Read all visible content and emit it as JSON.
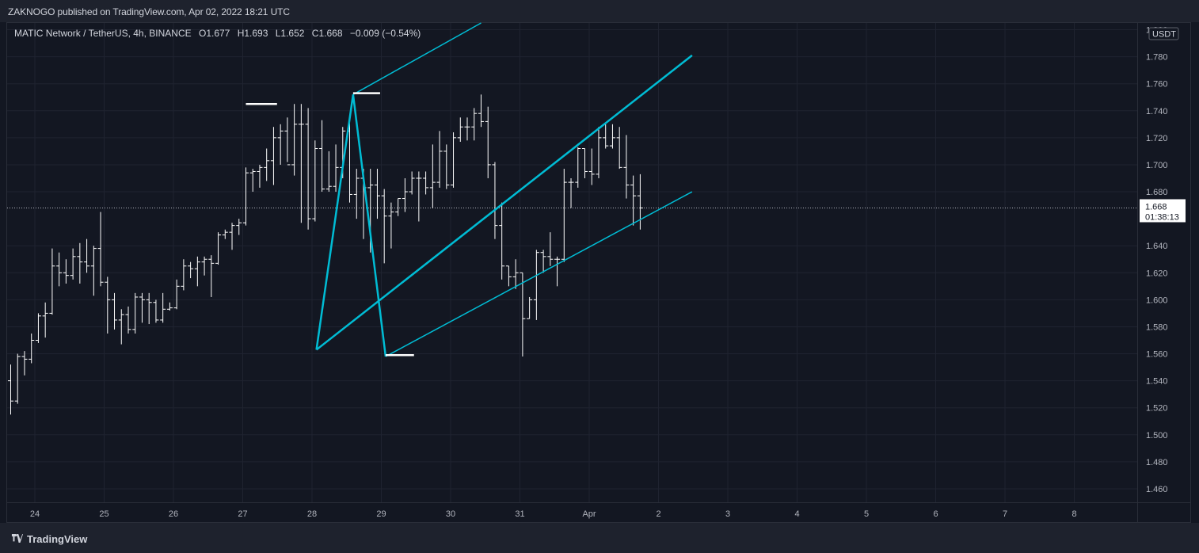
{
  "header": {
    "publish_line": "ZAKNOGO published on TradingView.com, Apr 02, 2022 18:21 UTC"
  },
  "legend": {
    "symbol": "MATIC Network / TetherUS, 4h, BINANCE",
    "open_label": "O",
    "open": "1.677",
    "high_label": "H",
    "high": "1.693",
    "low_label": "L",
    "low": "1.652",
    "close_label": "C",
    "close": "1.668",
    "change": "−0.009 (−0.54%)"
  },
  "price_axis": {
    "currency": "USDT",
    "ticks": [
      "1.800",
      "1.780",
      "1.760",
      "1.740",
      "1.720",
      "1.700",
      "1.680",
      "1.640",
      "1.620",
      "1.600",
      "1.580",
      "1.560",
      "1.540",
      "1.520",
      "1.500",
      "1.480",
      "1.460"
    ],
    "last_price": "1.668",
    "countdown": "01:38:13"
  },
  "time_axis": {
    "ticks": [
      "24",
      "25",
      "26",
      "27",
      "28",
      "29",
      "30",
      "31",
      "Apr",
      "2",
      "3",
      "4",
      "5",
      "6",
      "7",
      "8"
    ]
  },
  "footer": {
    "brand": "TradingView"
  },
  "colors": {
    "background": "#131722",
    "bars": "#ffffff",
    "pitchfork": "#00bcd4",
    "grid": "#1f2330",
    "axis_text": "#b2b5be"
  },
  "chart_data": {
    "type": "ohlc",
    "timeframe": "4h",
    "ylim": [
      1.45,
      1.805
    ],
    "x_ticks": [
      "24",
      "25",
      "26",
      "27",
      "28",
      "29",
      "30",
      "31",
      "Apr",
      "2",
      "3",
      "4",
      "5",
      "6",
      "7",
      "8"
    ],
    "bars": [
      {
        "o": 1.54,
        "h": 1.552,
        "l": 1.515,
        "c": 1.525
      },
      {
        "o": 1.525,
        "h": 1.56,
        "l": 1.523,
        "c": 1.558
      },
      {
        "o": 1.558,
        "h": 1.562,
        "l": 1.544,
        "c": 1.556
      },
      {
        "o": 1.556,
        "h": 1.575,
        "l": 1.553,
        "c": 1.57
      },
      {
        "o": 1.57,
        "h": 1.59,
        "l": 1.568,
        "c": 1.588
      },
      {
        "o": 1.588,
        "h": 1.598,
        "l": 1.572,
        "c": 1.59
      },
      {
        "o": 1.59,
        "h": 1.638,
        "l": 1.589,
        "c": 1.625
      },
      {
        "o": 1.625,
        "h": 1.635,
        "l": 1.61,
        "c": 1.62
      },
      {
        "o": 1.62,
        "h": 1.63,
        "l": 1.612,
        "c": 1.618
      },
      {
        "o": 1.618,
        "h": 1.638,
        "l": 1.615,
        "c": 1.632
      },
      {
        "o": 1.632,
        "h": 1.642,
        "l": 1.612,
        "c": 1.628
      },
      {
        "o": 1.628,
        "h": 1.645,
        "l": 1.62,
        "c": 1.625
      },
      {
        "o": 1.625,
        "h": 1.64,
        "l": 1.603,
        "c": 1.638
      },
      {
        "o": 1.638,
        "h": 1.665,
        "l": 1.61,
        "c": 1.613
      },
      {
        "o": 1.613,
        "h": 1.617,
        "l": 1.575,
        "c": 1.6
      },
      {
        "o": 1.6,
        "h": 1.605,
        "l": 1.578,
        "c": 1.585
      },
      {
        "o": 1.585,
        "h": 1.593,
        "l": 1.567,
        "c": 1.589
      },
      {
        "o": 1.589,
        "h": 1.595,
        "l": 1.575,
        "c": 1.578
      },
      {
        "o": 1.578,
        "h": 1.605,
        "l": 1.575,
        "c": 1.602
      },
      {
        "o": 1.602,
        "h": 1.605,
        "l": 1.583,
        "c": 1.6
      },
      {
        "o": 1.6,
        "h": 1.605,
        "l": 1.582,
        "c": 1.598
      },
      {
        "o": 1.598,
        "h": 1.6,
        "l": 1.583,
        "c": 1.585
      },
      {
        "o": 1.585,
        "h": 1.605,
        "l": 1.583,
        "c": 1.593
      },
      {
        "o": 1.593,
        "h": 1.598,
        "l": 1.592,
        "c": 1.594
      },
      {
        "o": 1.594,
        "h": 1.615,
        "l": 1.593,
        "c": 1.61
      },
      {
        "o": 1.61,
        "h": 1.63,
        "l": 1.607,
        "c": 1.625
      },
      {
        "o": 1.625,
        "h": 1.628,
        "l": 1.616,
        "c": 1.623
      },
      {
        "o": 1.623,
        "h": 1.632,
        "l": 1.61,
        "c": 1.628
      },
      {
        "o": 1.628,
        "h": 1.632,
        "l": 1.618,
        "c": 1.63
      },
      {
        "o": 1.63,
        "h": 1.633,
        "l": 1.602,
        "c": 1.627
      },
      {
        "o": 1.627,
        "h": 1.65,
        "l": 1.626,
        "c": 1.648
      },
      {
        "o": 1.648,
        "h": 1.652,
        "l": 1.645,
        "c": 1.65
      },
      {
        "o": 1.65,
        "h": 1.657,
        "l": 1.637,
        "c": 1.655
      },
      {
        "o": 1.655,
        "h": 1.66,
        "l": 1.648,
        "c": 1.657
      },
      {
        "o": 1.657,
        "h": 1.698,
        "l": 1.655,
        "c": 1.694
      },
      {
        "o": 1.694,
        "h": 1.697,
        "l": 1.68,
        "c": 1.695
      },
      {
        "o": 1.695,
        "h": 1.7,
        "l": 1.683,
        "c": 1.698
      },
      {
        "o": 1.698,
        "h": 1.712,
        "l": 1.688,
        "c": 1.703
      },
      {
        "o": 1.703,
        "h": 1.728,
        "l": 1.685,
        "c": 1.72
      },
      {
        "o": 1.72,
        "h": 1.73,
        "l": 1.7,
        "c": 1.725
      },
      {
        "o": 1.725,
        "h": 1.735,
        "l": 1.702,
        "c": 1.7
      },
      {
        "o": 1.7,
        "h": 1.745,
        "l": 1.692,
        "c": 1.73
      },
      {
        "o": 1.73,
        "h": 1.745,
        "l": 1.657,
        "c": 1.73
      },
      {
        "o": 1.73,
        "h": 1.742,
        "l": 1.652,
        "c": 1.66
      },
      {
        "o": 1.66,
        "h": 1.718,
        "l": 1.658,
        "c": 1.712
      },
      {
        "o": 1.712,
        "h": 1.733,
        "l": 1.68,
        "c": 1.682
      },
      {
        "o": 1.682,
        "h": 1.71,
        "l": 1.68,
        "c": 1.684
      },
      {
        "o": 1.684,
        "h": 1.715,
        "l": 1.68,
        "c": 1.698
      },
      {
        "o": 1.698,
        "h": 1.728,
        "l": 1.69,
        "c": 1.725
      },
      {
        "o": 1.725,
        "h": 1.737,
        "l": 1.672,
        "c": 1.678
      },
      {
        "o": 1.678,
        "h": 1.697,
        "l": 1.66,
        "c": 1.69
      },
      {
        "o": 1.69,
        "h": 1.697,
        "l": 1.645,
        "c": 1.683
      },
      {
        "o": 1.683,
        "h": 1.697,
        "l": 1.635,
        "c": 1.685
      },
      {
        "o": 1.685,
        "h": 1.697,
        "l": 1.66,
        "c": 1.677
      },
      {
        "o": 1.677,
        "h": 1.682,
        "l": 1.627,
        "c": 1.662
      },
      {
        "o": 1.662,
        "h": 1.672,
        "l": 1.638,
        "c": 1.665
      },
      {
        "o": 1.665,
        "h": 1.675,
        "l": 1.662,
        "c": 1.675
      },
      {
        "o": 1.675,
        "h": 1.69,
        "l": 1.665,
        "c": 1.68
      },
      {
        "o": 1.68,
        "h": 1.695,
        "l": 1.678,
        "c": 1.69
      },
      {
        "o": 1.69,
        "h": 1.695,
        "l": 1.658,
        "c": 1.69
      },
      {
        "o": 1.69,
        "h": 1.695,
        "l": 1.678,
        "c": 1.683
      },
      {
        "o": 1.683,
        "h": 1.715,
        "l": 1.668,
        "c": 1.687
      },
      {
        "o": 1.687,
        "h": 1.725,
        "l": 1.683,
        "c": 1.71
      },
      {
        "o": 1.71,
        "h": 1.715,
        "l": 1.682,
        "c": 1.685
      },
      {
        "o": 1.685,
        "h": 1.724,
        "l": 1.683,
        "c": 1.72
      },
      {
        "o": 1.72,
        "h": 1.735,
        "l": 1.717,
        "c": 1.728
      },
      {
        "o": 1.728,
        "h": 1.735,
        "l": 1.718,
        "c": 1.728
      },
      {
        "o": 1.728,
        "h": 1.742,
        "l": 1.718,
        "c": 1.738
      },
      {
        "o": 1.738,
        "h": 1.752,
        "l": 1.728,
        "c": 1.732
      },
      {
        "o": 1.732,
        "h": 1.743,
        "l": 1.69,
        "c": 1.7
      },
      {
        "o": 1.7,
        "h": 1.702,
        "l": 1.645,
        "c": 1.655
      },
      {
        "o": 1.655,
        "h": 1.672,
        "l": 1.615,
        "c": 1.625
      },
      {
        "o": 1.625,
        "h": 1.625,
        "l": 1.61,
        "c": 1.617
      },
      {
        "o": 1.617,
        "h": 1.63,
        "l": 1.608,
        "c": 1.62
      },
      {
        "o": 1.62,
        "h": 1.62,
        "l": 1.558,
        "c": 1.586
      },
      {
        "o": 1.586,
        "h": 1.602,
        "l": 1.586,
        "c": 1.6
      },
      {
        "o": 1.6,
        "h": 1.637,
        "l": 1.585,
        "c": 1.635
      },
      {
        "o": 1.635,
        "h": 1.637,
        "l": 1.62,
        "c": 1.632
      },
      {
        "o": 1.632,
        "h": 1.65,
        "l": 1.625,
        "c": 1.63
      },
      {
        "o": 1.63,
        "h": 1.632,
        "l": 1.61,
        "c": 1.63
      },
      {
        "o": 1.63,
        "h": 1.697,
        "l": 1.628,
        "c": 1.687
      },
      {
        "o": 1.687,
        "h": 1.69,
        "l": 1.668,
        "c": 1.687
      },
      {
        "o": 1.687,
        "h": 1.713,
        "l": 1.683,
        "c": 1.712
      },
      {
        "o": 1.712,
        "h": 1.712,
        "l": 1.69,
        "c": 1.695
      },
      {
        "o": 1.695,
        "h": 1.712,
        "l": 1.685,
        "c": 1.693
      },
      {
        "o": 1.693,
        "h": 1.728,
        "l": 1.69,
        "c": 1.72
      },
      {
        "o": 1.72,
        "h": 1.73,
        "l": 1.712,
        "c": 1.714
      },
      {
        "o": 1.714,
        "h": 1.73,
        "l": 1.712,
        "c": 1.72
      },
      {
        "o": 1.72,
        "h": 1.728,
        "l": 1.697,
        "c": 1.698
      },
      {
        "o": 1.698,
        "h": 1.722,
        "l": 1.675,
        "c": 1.685
      },
      {
        "o": 1.685,
        "h": 1.692,
        "l": 1.655,
        "c": 1.677
      },
      {
        "o": 1.677,
        "h": 1.693,
        "l": 1.652,
        "c": 1.668
      }
    ],
    "pitchfork": {
      "handle": [
        [
          44.2,
          1.563
        ],
        [
          49.5,
          1.752
        ],
        [
          54.2,
          1.558
        ]
      ],
      "median_line": [
        [
          44.2,
          1.563
        ],
        [
          98.5,
          1.781
        ]
      ],
      "upper_line": [
        [
          49.5,
          1.752
        ],
        [
          68.0,
          1.805
        ]
      ],
      "lower_line": [
        [
          54.2,
          1.558
        ],
        [
          98.5,
          1.68
        ]
      ]
    },
    "horizontal_segments": [
      [
        [
          34.0,
          1.745
        ],
        [
          38.5,
          1.745
        ]
      ],
      [
        [
          49.5,
          1.753
        ],
        [
          53.4,
          1.753
        ]
      ],
      [
        [
          54.2,
          1.559
        ],
        [
          58.3,
          1.559
        ]
      ]
    ],
    "last_price_line": 1.668
  }
}
